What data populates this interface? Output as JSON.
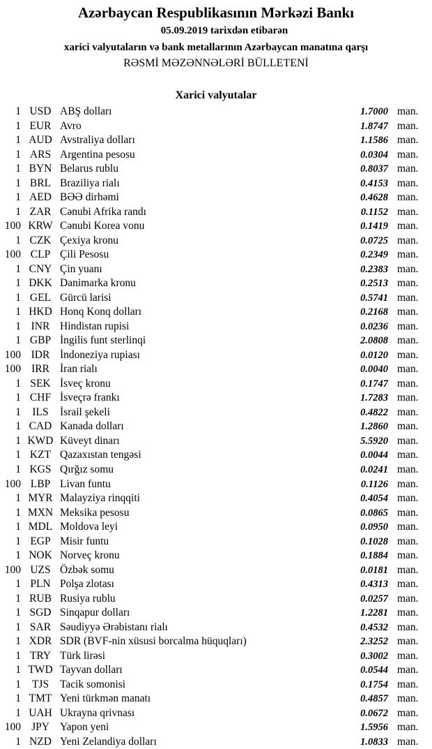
{
  "header": {
    "title": "Azərbaycan Respublikasının Mərkəzi Bankı",
    "date_line": "05.09.2019  tarixdən etibarən",
    "subtitle": "xarici valyutaların və bank metallarının Azərbaycan manatına qarşı",
    "bulletin": "RƏSMİ MƏZƏNNƏLƏRİ BÜLLETENİ",
    "section": "Xarici valyutalar"
  },
  "unit": "man.",
  "rates": [
    {
      "amount": "1",
      "code": "USD",
      "name": "ABŞ dolları",
      "rate": "1.7000"
    },
    {
      "amount": "1",
      "code": "EUR",
      "name": "Avro",
      "rate": "1.8747"
    },
    {
      "amount": "1",
      "code": "AUD",
      "name": "Avstraliya dolları",
      "rate": "1.1586"
    },
    {
      "amount": "1",
      "code": "ARS",
      "name": "Argentina pesosu",
      "rate": "0.0304"
    },
    {
      "amount": "1",
      "code": "BYN",
      "name": "Belarus rublu",
      "rate": "0.8037"
    },
    {
      "amount": "1",
      "code": "BRL",
      "name": "Braziliya rialı",
      "rate": "0.4153"
    },
    {
      "amount": "1",
      "code": "AED",
      "name": "BƏƏ dirhəmi",
      "rate": "0.4628"
    },
    {
      "amount": "1",
      "code": "ZAR",
      "name": "Cənubi Afrika randı",
      "rate": "0.1152"
    },
    {
      "amount": "100",
      "code": "KRW",
      "name": "Cənubi Korea vonu",
      "rate": "0.1419"
    },
    {
      "amount": "1",
      "code": "CZK",
      "name": "Çexiya kronu",
      "rate": "0.0725"
    },
    {
      "amount": "100",
      "code": "CLP",
      "name": "Çili Pesosu",
      "rate": "0.2349"
    },
    {
      "amount": "1",
      "code": "CNY",
      "name": "Çin yuanı",
      "rate": "0.2383"
    },
    {
      "amount": "1",
      "code": "DKK",
      "name": "Danimarka kronu",
      "rate": "0.2513"
    },
    {
      "amount": "1",
      "code": "GEL",
      "name": "Gürcü larisi",
      "rate": "0.5741"
    },
    {
      "amount": "1",
      "code": "HKD",
      "name": "Honq Konq dolları",
      "rate": "0.2168"
    },
    {
      "amount": "1",
      "code": "INR",
      "name": "Hindistan rupisi",
      "rate": "0.0236"
    },
    {
      "amount": "1",
      "code": "GBP",
      "name": "İngilis funt sterlinqi",
      "rate": "2.0808"
    },
    {
      "amount": "100",
      "code": "IDR",
      "name": "İndoneziya rupiası",
      "rate": "0.0120"
    },
    {
      "amount": "100",
      "code": "IRR",
      "name": "İran rialı",
      "rate": "0.0040"
    },
    {
      "amount": "1",
      "code": "SEK",
      "name": "İsveç kronu",
      "rate": "0.1747"
    },
    {
      "amount": "1",
      "code": "CHF",
      "name": "İsveçrə frankı",
      "rate": "1.7283"
    },
    {
      "amount": "1",
      "code": "ILS",
      "name": "İsrail şekeli",
      "rate": "0.4822"
    },
    {
      "amount": "1",
      "code": "CAD",
      "name": "Kanada dolları",
      "rate": "1.2860"
    },
    {
      "amount": "1",
      "code": "KWD",
      "name": "Küveyt dinarı",
      "rate": "5.5920"
    },
    {
      "amount": "1",
      "code": "KZT",
      "name": "Qazaxıstan tengəsi",
      "rate": "0.0044"
    },
    {
      "amount": "1",
      "code": "KGS",
      "name": "Qırğız somu",
      "rate": "0.0241"
    },
    {
      "amount": "100",
      "code": "LBP",
      "name": "Livan funtu",
      "rate": "0.1126"
    },
    {
      "amount": "1",
      "code": "MYR",
      "name": "Malayziya rinqqiti",
      "rate": "0.4054"
    },
    {
      "amount": "1",
      "code": "MXN",
      "name": "Meksika pesosu",
      "rate": "0.0865"
    },
    {
      "amount": "1",
      "code": "MDL",
      "name": "Moldova leyi",
      "rate": "0.0950"
    },
    {
      "amount": "1",
      "code": "EGP",
      "name": "Misir funtu",
      "rate": "0.1028"
    },
    {
      "amount": "1",
      "code": "NOK",
      "name": "Norveç kronu",
      "rate": "0.1884"
    },
    {
      "amount": "100",
      "code": "UZS",
      "name": "Özbək somu",
      "rate": "0.0181"
    },
    {
      "amount": "1",
      "code": "PLN",
      "name": "Polşa zlotası",
      "rate": "0.4313"
    },
    {
      "amount": "1",
      "code": "RUB",
      "name": "Rusiya rublu",
      "rate": "0.0257"
    },
    {
      "amount": "1",
      "code": "SGD",
      "name": "Sinqapur dolları",
      "rate": "1.2281"
    },
    {
      "amount": "1",
      "code": "SAR",
      "name": "Səudiyyə Ərəbistanı rialı",
      "rate": "0.4532"
    },
    {
      "amount": "1",
      "code": "XDR",
      "name": "SDR (BVF-nin xüsusi borcalma hüquqları)",
      "rate": "2.3252"
    },
    {
      "amount": "1",
      "code": "TRY",
      "name": "Türk lirəsi",
      "rate": "0.3002"
    },
    {
      "amount": "1",
      "code": "TWD",
      "name": "Tayvan dolları",
      "rate": "0.0544"
    },
    {
      "amount": "1",
      "code": "TJS",
      "name": "Tacik somonisi",
      "rate": "0.1754"
    },
    {
      "amount": "1",
      "code": "TMT",
      "name": "Yeni türkmən manatı",
      "rate": "0.4857"
    },
    {
      "amount": "1",
      "code": "UAH",
      "name": "Ukrayna qrivnası",
      "rate": "0.0672"
    },
    {
      "amount": "100",
      "code": "JPY",
      "name": "Yapon yeni",
      "rate": "1.5956"
    },
    {
      "amount": "1",
      "code": "NZD",
      "name": "Yeni Zelandiya dolları",
      "rate": "1.0833"
    }
  ]
}
